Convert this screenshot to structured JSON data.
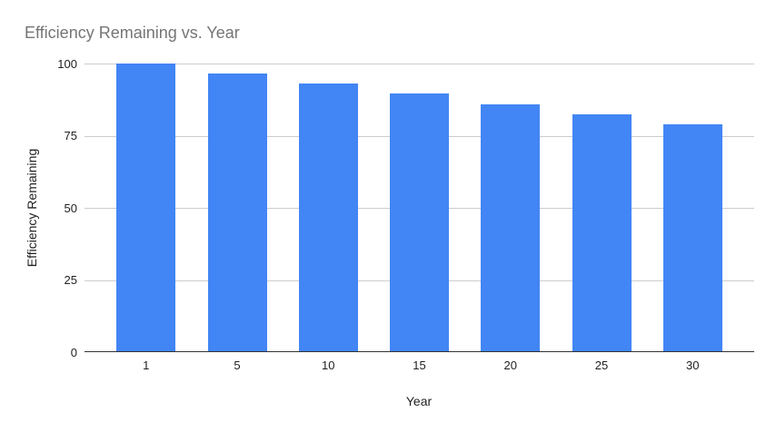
{
  "page": {
    "background": "#ffffff"
  },
  "chart_data": {
    "type": "bar",
    "title": "Efficiency Remaining vs. Year",
    "xlabel": "Year",
    "ylabel": "Efficiency Remaining",
    "categories": [
      "1",
      "5",
      "10",
      "15",
      "20",
      "25",
      "30"
    ],
    "values": [
      100,
      96.5,
      93,
      89.5,
      86,
      82.5,
      79
    ],
    "ylim": [
      0,
      100
    ],
    "yticks": [
      0,
      25,
      50,
      75,
      100
    ],
    "grid": true,
    "legend_position": "none",
    "bar_color": "#4285f4"
  },
  "colors": {
    "bar": "#4285f4",
    "title_text": "#757575",
    "axis_text": "#212121",
    "gridline": "#cccccc",
    "axis_line": "#333333",
    "background": "#ffffff"
  }
}
